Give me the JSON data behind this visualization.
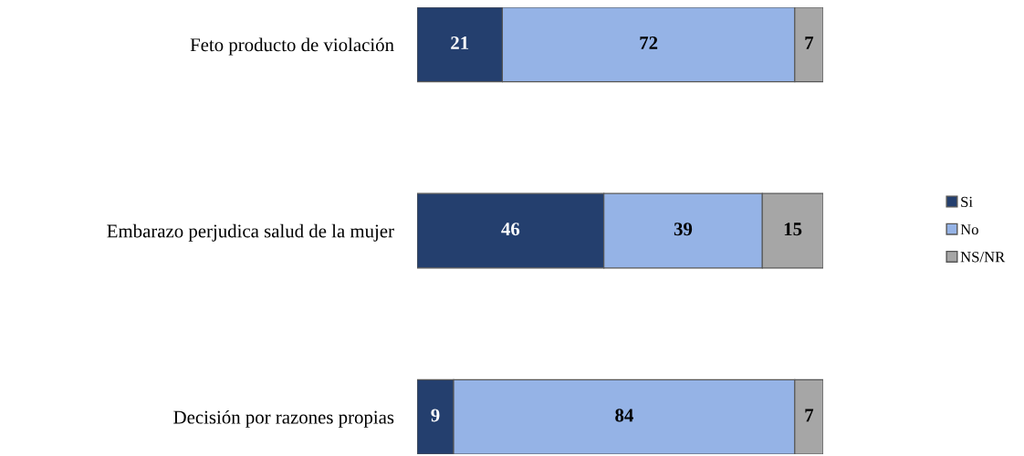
{
  "chart_data": {
    "type": "bar",
    "orientation": "horizontal",
    "stacked": true,
    "data_labels": true,
    "legend": "right",
    "grid": false,
    "categories": [
      "Feto producto de violación",
      "Embarazo perjudica salud de la mujer",
      "Decisión por razones propias"
    ],
    "series": [
      {
        "name": "Si",
        "color": "#243f6e",
        "values": [
          21,
          46,
          9
        ]
      },
      {
        "name": "No",
        "color": "#95b3e6",
        "values": [
          72,
          39,
          84
        ]
      },
      {
        "name": "NS/NR",
        "color": "#a6a6a6",
        "values": [
          7,
          15,
          7
        ]
      }
    ]
  }
}
